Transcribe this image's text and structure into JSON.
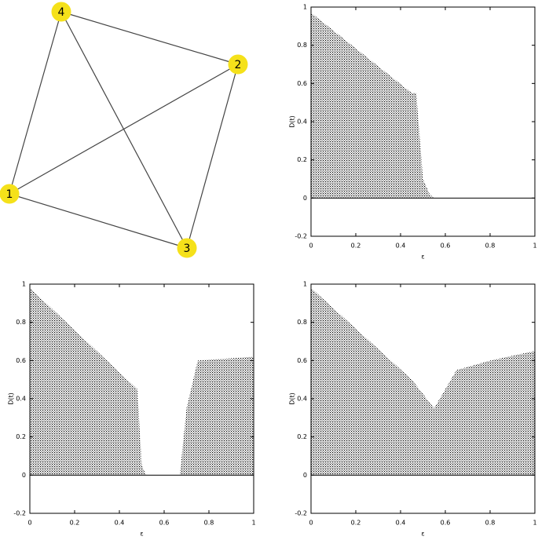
{
  "graph": {
    "nodes": [
      {
        "label": "1"
      },
      {
        "label": "2"
      },
      {
        "label": "3"
      },
      {
        "label": "4"
      }
    ]
  },
  "chart_data": [
    {
      "type": "area",
      "xlabel": "ε",
      "ylabel": "D(t)",
      "x": [
        0,
        0.45,
        0.47,
        0.5,
        0.53,
        0.55,
        1
      ],
      "series": [
        {
          "color": "#000000",
          "values": [
            0.97,
            0.55,
            0.55,
            0.1,
            0.02,
            0,
            0
          ]
        }
      ],
      "xlim": [
        0,
        1
      ],
      "ylim": [
        -0.2,
        1
      ],
      "xticks": [
        0,
        0.2,
        0.4,
        0.6,
        0.8,
        1
      ],
      "yticks": [
        -0.2,
        0,
        0.2,
        0.4,
        0.6,
        0.8,
        1
      ]
    },
    {
      "type": "area",
      "xlabel": "ε",
      "ylabel": "D(t)",
      "x": [
        0,
        0.48,
        0.5,
        0.52,
        0.67,
        0.7,
        0.75,
        1
      ],
      "series": [
        {
          "color": "#000000",
          "values": [
            0.98,
            0.45,
            0.05,
            0,
            0,
            0.35,
            0.6,
            0.62
          ]
        }
      ],
      "xlim": [
        0,
        1
      ],
      "ylim": [
        -0.2,
        1
      ],
      "xticks": [
        0,
        0.2,
        0.4,
        0.6,
        0.8,
        1
      ],
      "yticks": [
        -0.2,
        0,
        0.2,
        0.4,
        0.6,
        0.8,
        1
      ]
    },
    {
      "type": "area",
      "xlabel": "ε",
      "ylabel": "D(t)",
      "x": [
        0,
        0.45,
        0.55,
        0.65,
        0.8,
        1
      ],
      "series": [
        {
          "color": "#000000",
          "values": [
            0.98,
            0.5,
            0.35,
            0.55,
            0.6,
            0.65
          ]
        }
      ],
      "xlim": [
        0,
        1
      ],
      "ylim": [
        -0.2,
        1
      ],
      "xticks": [
        0,
        0.2,
        0.4,
        0.6,
        0.8,
        1
      ],
      "yticks": [
        -0.2,
        0,
        0.2,
        0.4,
        0.6,
        0.8,
        1
      ]
    }
  ]
}
